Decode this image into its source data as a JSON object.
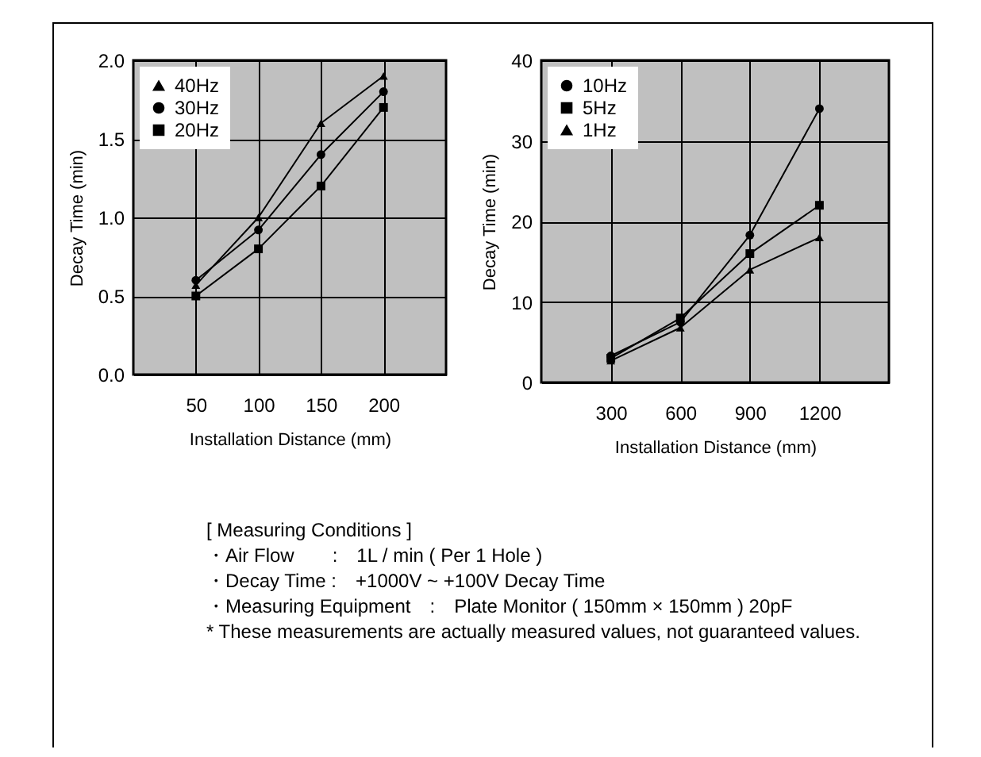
{
  "chart_data": [
    {
      "type": "line",
      "xlabel": "Installation Distance (mm)",
      "ylabel": "Decay Time (min)",
      "x": [
        50,
        100,
        150,
        200
      ],
      "xlim": [
        0,
        250
      ],
      "xticks": [
        50,
        100,
        150,
        200
      ],
      "ylim": [
        0,
        2
      ],
      "yticks": [
        {
          "value": 0,
          "label": "0.0"
        },
        {
          "value": 0.5,
          "label": "0.5"
        },
        {
          "value": 1,
          "label": "1.0"
        },
        {
          "value": 1.5,
          "label": "1.5"
        },
        {
          "value": 2,
          "label": "2.0"
        }
      ],
      "grid": true,
      "legend": "top left",
      "series": [
        {
          "name": "40Hz",
          "color": "#000000",
          "marker": "triangle",
          "values": [
            0.57,
            1.0,
            1.6,
            1.9
          ]
        },
        {
          "name": "30Hz",
          "color": "#000000",
          "marker": "circle",
          "values": [
            0.6,
            0.92,
            1.4,
            1.8
          ]
        },
        {
          "name": "20Hz",
          "color": "#000000",
          "marker": "square",
          "values": [
            0.5,
            0.8,
            1.2,
            1.7
          ]
        }
      ]
    },
    {
      "type": "line",
      "xlabel": "Installation Distance (mm)",
      "ylabel": "Decay Time (min)",
      "x": [
        300,
        600,
        900,
        1200
      ],
      "xlim": [
        0,
        1500
      ],
      "xticks": [
        300,
        600,
        900,
        1200
      ],
      "ylim": [
        0,
        40
      ],
      "yticks": [
        0,
        10,
        20,
        30,
        40
      ],
      "grid": true,
      "legend": "top left",
      "series": [
        {
          "name": "10Hz",
          "color": "#000000",
          "marker": "circle",
          "values": [
            3.3,
            7.5,
            18.3,
            34
          ]
        },
        {
          "name": "5Hz",
          "color": "#000000",
          "marker": "square",
          "values": [
            3,
            8,
            16,
            22
          ]
        },
        {
          "name": "1Hz",
          "color": "#000000",
          "marker": "triangle",
          "values": [
            2.7,
            6.8,
            14,
            18
          ]
        }
      ],
      "annotations": [
        "[ Measuring Conditions ]",
        "・Air Flow　　:　1L / min ( Per 1 Hole )",
        "・Decay Time :　+1000V ~ +100V Decay Time",
        "・Measuring Equipment　:　Plate Monitor ( 150mm × 150mm ) 20pF",
        "* These measurements are actually measured values, not guaranteed values."
      ]
    }
  ]
}
